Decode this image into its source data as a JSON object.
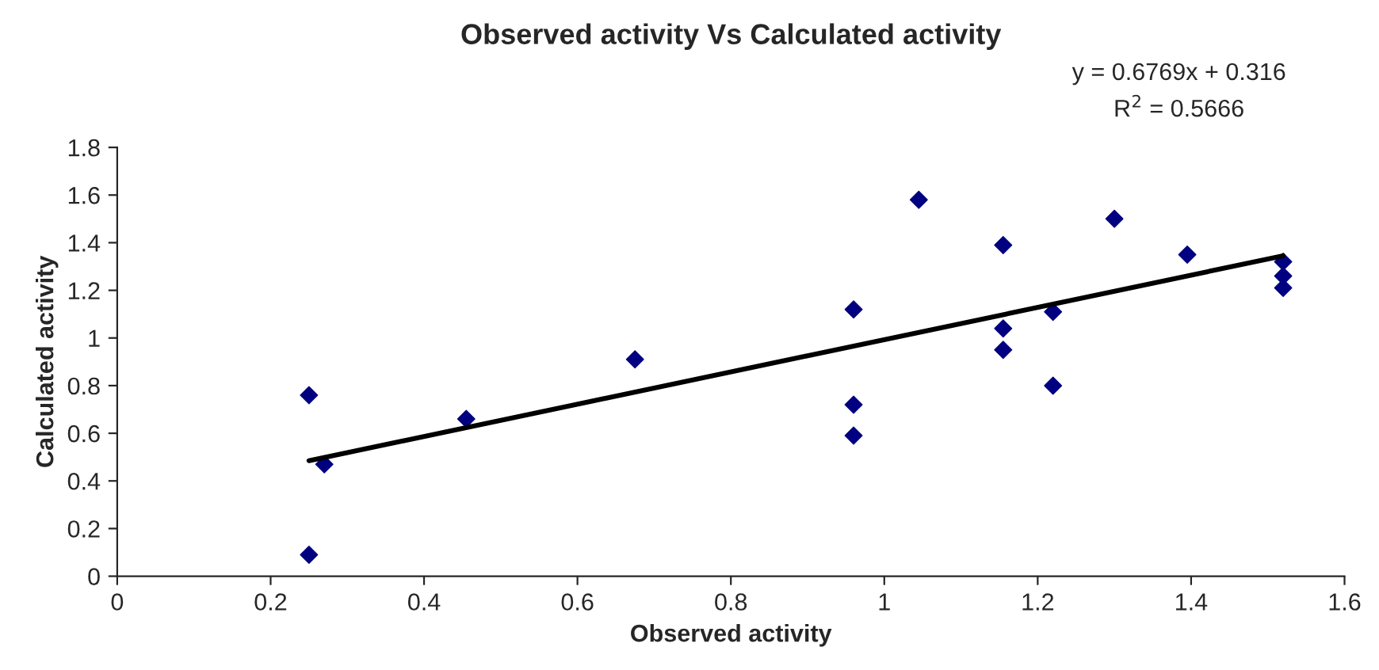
{
  "chart_data": {
    "type": "scatter",
    "title": "Observed activity Vs Calculated activity",
    "xlabel": "Observed activity",
    "ylabel": "Calculated activity",
    "xlim": [
      0,
      1.6
    ],
    "xticks": [
      0,
      0.2,
      0.4,
      0.6,
      0.8,
      1,
      1.2,
      1.4,
      1.6
    ],
    "ylim": [
      0,
      1.8
    ],
    "yticks": [
      0,
      0.2,
      0.4,
      0.6,
      0.8,
      1,
      1.2,
      1.4,
      1.6,
      1.8
    ],
    "grid": false,
    "legend": false,
    "series": [
      {
        "marker": "diamond",
        "color": "#000080",
        "x": [
          0.25,
          0.25,
          0.27,
          0.455,
          0.675,
          0.96,
          0.96,
          0.96,
          1.045,
          1.155,
          1.155,
          1.155,
          1.22,
          1.22,
          1.3,
          1.395,
          1.52,
          1.52,
          1.52
        ],
        "values": [
          0.76,
          0.09,
          0.47,
          0.66,
          0.91,
          1.12,
          0.72,
          0.59,
          1.58,
          1.39,
          1.04,
          0.95,
          1.11,
          0.8,
          1.5,
          1.35,
          1.32,
          1.26,
          1.21
        ]
      },
      {
        "type": "line",
        "marker": "none",
        "color": "#000000",
        "x": [
          0.25,
          1.52
        ],
        "values": [
          0.485,
          1.345
        ]
      }
    ],
    "annotations": [
      "y = 0.6769x + 0.316",
      "R$^{2}$ = 0.5666"
    ]
  }
}
